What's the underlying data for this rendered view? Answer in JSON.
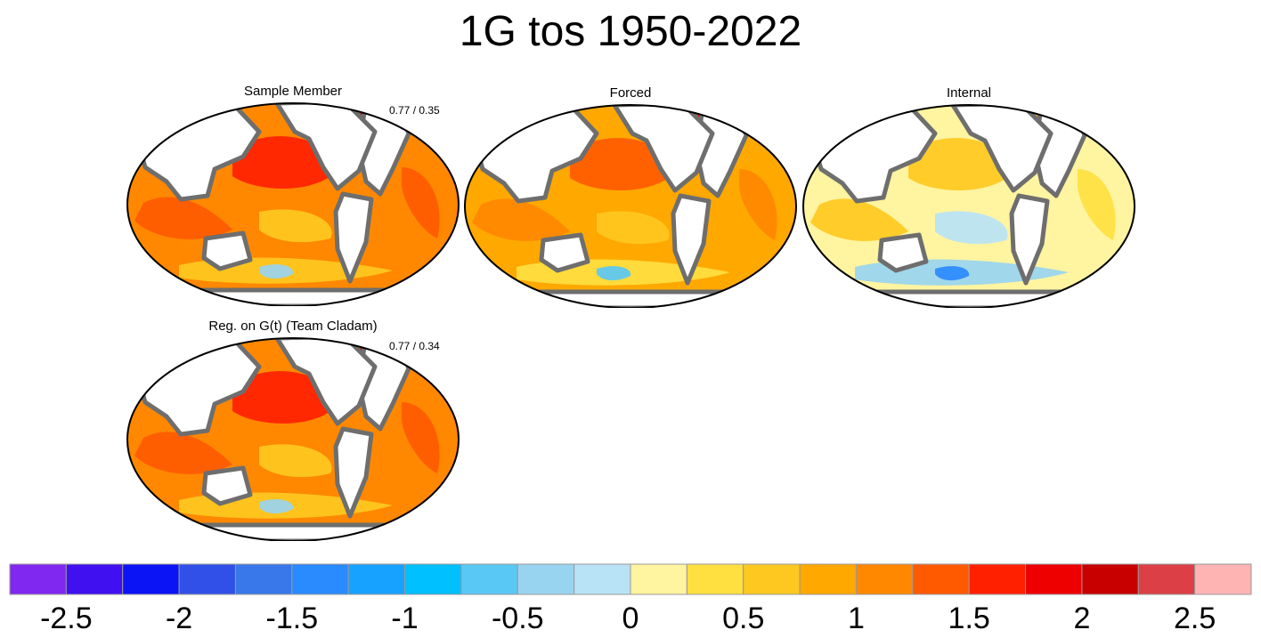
{
  "figure": {
    "title": "1G tos 1950-2022"
  },
  "panels": [
    {
      "id": "sample-member",
      "title": "Sample Member",
      "stat": "0.77 / 0.35",
      "dominant_level": 1.1
    },
    {
      "id": "forced",
      "title": "Forced",
      "stat": "",
      "dominant_level": 0.9
    },
    {
      "id": "internal",
      "title": "Internal",
      "stat": "",
      "dominant_level": 0.2
    },
    {
      "id": "regression",
      "title": "Reg. on G(t) (Team Cladam)",
      "stat": "0.77 / 0.34",
      "dominant_level": 1.1
    }
  ],
  "colors": {
    "coastline": "#6e6e6e",
    "land": "#ffffff",
    "outline": "#000000"
  },
  "chart_data": {
    "type": "heatmap",
    "title": "1G tos 1950-2022",
    "colorbar": {
      "tick_labels": [
        "-2.5",
        "-2",
        "-1.5",
        "-1",
        "-0.5",
        "0",
        "0.5",
        "1",
        "1.5",
        "2",
        "2.5"
      ],
      "levels": [
        -2.75,
        -2.5,
        -2.25,
        -2.0,
        -1.75,
        -1.5,
        -1.25,
        -1.0,
        -0.75,
        -0.5,
        -0.25,
        0.0,
        0.25,
        0.5,
        0.75,
        1.0,
        1.25,
        1.5,
        1.75,
        2.0,
        2.25,
        2.5,
        2.75
      ],
      "colors": [
        "#8028f0",
        "#4010f0",
        "#0a14f5",
        "#3050e8",
        "#3878ea",
        "#2a8aff",
        "#18a2ff",
        "#00c0ff",
        "#5ac8f5",
        "#98d4f0",
        "#b8e2f6",
        "#fff4a0",
        "#ffe040",
        "#ffc820",
        "#ffa800",
        "#ff8800",
        "#ff5a00",
        "#ff2000",
        "#ee0000",
        "#c80000",
        "#dc4046",
        "#ffb4b4"
      ]
    }
  }
}
